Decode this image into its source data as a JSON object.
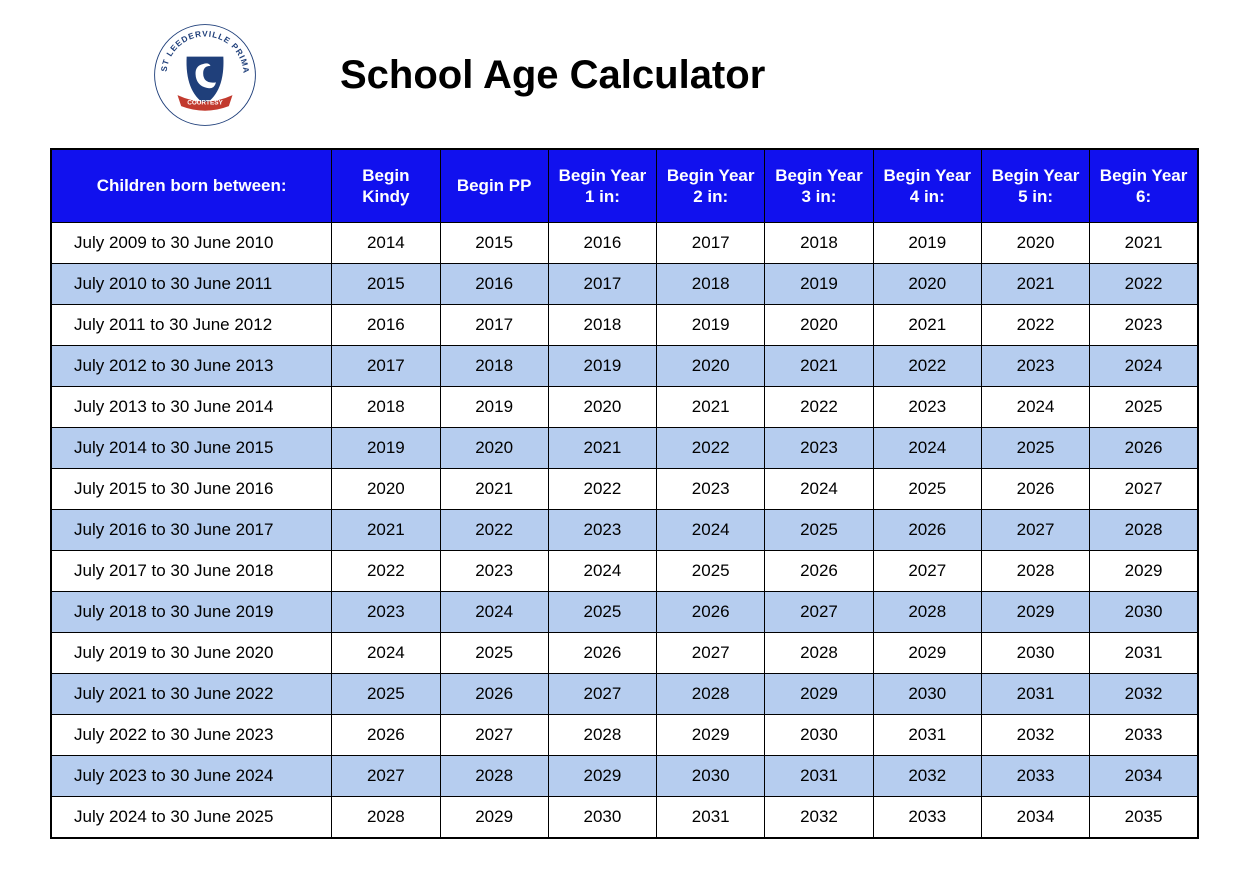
{
  "title": "School Age Calculator",
  "logo": {
    "name": "west-leederville-primary-logo",
    "outer_text_color": "#1f3f7a",
    "swan_color": "#1f3f7a",
    "banner_color": "#c23a2e",
    "banner_text": "COURTESY",
    "outer_text": "WEST LEEDERVILLE PRIMARY"
  },
  "table": {
    "type": "table",
    "header_bg": "#1111ee",
    "header_text_color": "#ffffff",
    "row_alt_bg": "#b6cdef",
    "row_bg": "#ffffff",
    "border_color": "#000000",
    "font_size": 17,
    "columns": [
      "Children born between:",
      "Begin Kindy",
      "Begin PP",
      "Begin Year 1 in:",
      "Begin Year 2 in:",
      "Begin Year 3 in:",
      "Begin Year 4 in:",
      "Begin Year 5 in:",
      "Begin Year 6:"
    ],
    "rows": [
      [
        "July 2009 to 30 June 2010",
        "2014",
        "2015",
        "2016",
        "2017",
        "2018",
        "2019",
        "2020",
        "2021"
      ],
      [
        "July 2010 to 30 June 2011",
        "2015",
        "2016",
        "2017",
        "2018",
        "2019",
        "2020",
        "2021",
        "2022"
      ],
      [
        "July 2011 to 30 June 2012",
        "2016",
        "2017",
        "2018",
        "2019",
        "2020",
        "2021",
        "2022",
        "2023"
      ],
      [
        "July 2012 to 30 June 2013",
        "2017",
        "2018",
        "2019",
        "2020",
        "2021",
        "2022",
        "2023",
        "2024"
      ],
      [
        "July 2013 to 30 June 2014",
        "2018",
        "2019",
        "2020",
        "2021",
        "2022",
        "2023",
        "2024",
        "2025"
      ],
      [
        "July 2014 to 30 June 2015",
        "2019",
        "2020",
        "2021",
        "2022",
        "2023",
        "2024",
        "2025",
        "2026"
      ],
      [
        "July 2015 to 30 June 2016",
        "2020",
        "2021",
        "2022",
        "2023",
        "2024",
        "2025",
        "2026",
        "2027"
      ],
      [
        "July 2016 to 30 June 2017",
        "2021",
        "2022",
        "2023",
        "2024",
        "2025",
        "2026",
        "2027",
        "2028"
      ],
      [
        "July 2017 to 30 June 2018",
        "2022",
        "2023",
        "2024",
        "2025",
        "2026",
        "2027",
        "2028",
        "2029"
      ],
      [
        "July 2018 to 30 June 2019",
        "2023",
        "2024",
        "2025",
        "2026",
        "2027",
        "2028",
        "2029",
        "2030"
      ],
      [
        "July 2019 to 30 June 2020",
        "2024",
        "2025",
        "2026",
        "2027",
        "2028",
        "2029",
        "2030",
        "2031"
      ],
      [
        "July 2021 to 30 June 2022",
        "2025",
        "2026",
        "2027",
        "2028",
        "2029",
        "2030",
        "2031",
        "2032"
      ],
      [
        "July 2022 to 30 June 2023",
        "2026",
        "2027",
        "2028",
        "2029",
        "2030",
        "2031",
        "2032",
        "2033"
      ],
      [
        "July 2023 to 30 June 2024",
        "2027",
        "2028",
        "2029",
        "2030",
        "2031",
        "2032",
        "2033",
        "2034"
      ],
      [
        "July 2024 to 30 June 2025",
        "2028",
        "2029",
        "2030",
        "2031",
        "2032",
        "2033",
        "2034",
        "2035"
      ]
    ]
  }
}
